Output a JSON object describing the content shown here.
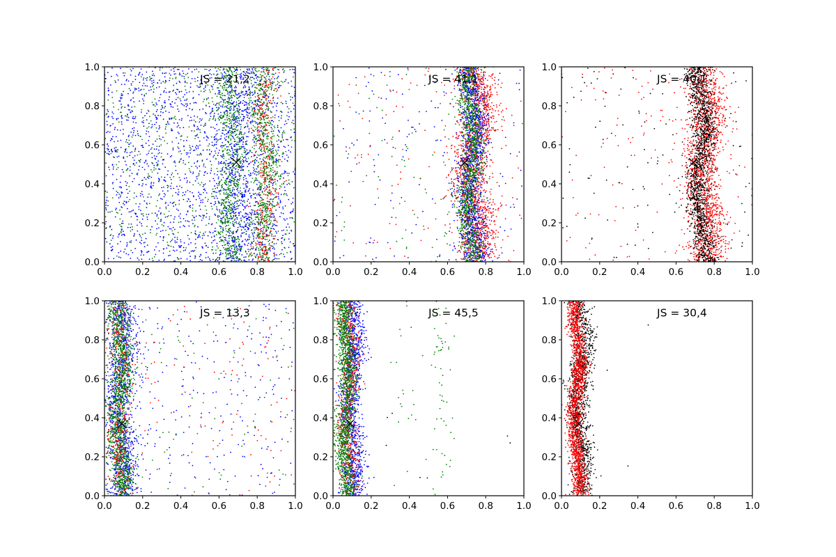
{
  "figure": {
    "layout": "2x3 grid of scatter subplots",
    "background": "#ffffff"
  },
  "chart_data": [
    {
      "type": "scatter",
      "annotation": "JS = 21,2",
      "xlim": [
        0,
        1
      ],
      "ylim": [
        0,
        1
      ],
      "xticks": [
        "0.0",
        "0.2",
        "0.4",
        "0.6",
        "0.8",
        "1.0"
      ],
      "yticks": [
        "0.0",
        "0.2",
        "0.4",
        "0.6",
        "0.8",
        "1.0"
      ],
      "marker": {
        "x": 0.69,
        "y": 0.51,
        "symbol": "x",
        "color": "#000000"
      },
      "point_groups": [
        {
          "color": "#0000ff",
          "pattern": "uniform",
          "count": 1800
        },
        {
          "color": "#008000",
          "pattern": "uniform",
          "count": 600
        },
        {
          "color": "#008000",
          "pattern": "band",
          "x_center": 0.66,
          "width": 0.035,
          "wave": 0.02,
          "count": 700
        },
        {
          "color": "#008000",
          "pattern": "band",
          "x_center": 0.84,
          "width": 0.035,
          "wave": 0.02,
          "count": 700
        },
        {
          "color": "#ff0000",
          "pattern": "band",
          "x_center": 0.84,
          "width": 0.03,
          "wave": 0.02,
          "count": 350
        },
        {
          "color": "#0000ff",
          "pattern": "band",
          "x_center": 0.7,
          "width": 0.05,
          "wave": 0.02,
          "count": 500
        }
      ]
    },
    {
      "type": "scatter",
      "annotation": "JS = 41,1",
      "xlim": [
        0,
        1
      ],
      "ylim": [
        0,
        1
      ],
      "xticks": [
        "0.0",
        "0.2",
        "0.4",
        "0.6",
        "0.8",
        "1.0"
      ],
      "yticks": [
        "0.0",
        "0.2",
        "0.4",
        "0.6",
        "0.8",
        "1.0"
      ],
      "marker": {
        "x": 0.69,
        "y": 0.51,
        "symbol": "x",
        "color": "#000000"
      },
      "point_groups": [
        {
          "color": "#ff0000",
          "pattern": "band",
          "x_center": 0.74,
          "width": 0.05,
          "wave": 0.02,
          "count": 1500
        },
        {
          "color": "#0000ff",
          "pattern": "band",
          "x_center": 0.73,
          "width": 0.035,
          "wave": 0.02,
          "count": 1200
        },
        {
          "color": "#008000",
          "pattern": "band",
          "x_center": 0.72,
          "width": 0.03,
          "wave": 0.02,
          "count": 1100
        },
        {
          "color": "#ff0000",
          "pattern": "uniform",
          "count": 150
        },
        {
          "color": "#0000ff",
          "pattern": "uniform",
          "count": 150
        },
        {
          "color": "#008000",
          "pattern": "uniform",
          "count": 100
        }
      ]
    },
    {
      "type": "scatter",
      "annotation": "JS = 40,1",
      "xlim": [
        0,
        1
      ],
      "ylim": [
        0,
        1
      ],
      "xticks": [
        "0.0",
        "0.2",
        "0.4",
        "0.6",
        "0.8",
        "1.0"
      ],
      "yticks": [
        "0.0",
        "0.2",
        "0.4",
        "0.6",
        "0.8",
        "1.0"
      ],
      "marker": {
        "x": 0.69,
        "y": 0.51,
        "symbol": "x",
        "color": "#000000"
      },
      "point_groups": [
        {
          "color": "#ff0000",
          "pattern": "band",
          "x_center": 0.75,
          "width": 0.05,
          "wave": 0.025,
          "count": 1600
        },
        {
          "color": "#000000",
          "pattern": "band",
          "x_center": 0.73,
          "width": 0.03,
          "wave": 0.025,
          "count": 1300
        },
        {
          "color": "#ff0000",
          "pattern": "uniform",
          "count": 150
        },
        {
          "color": "#000000",
          "pattern": "uniform",
          "count": 120
        }
      ]
    },
    {
      "type": "scatter",
      "annotation": "JS = 13,3",
      "xlim": [
        0,
        1
      ],
      "ylim": [
        0,
        1
      ],
      "xticks": [
        "0.0",
        "0.2",
        "0.4",
        "0.6",
        "0.8",
        "1.0"
      ],
      "yticks": [
        "0.0",
        "0.2",
        "0.4",
        "0.6",
        "0.8",
        "1.0"
      ],
      "marker": {
        "x": 0.09,
        "y": 0.37,
        "symbol": "x",
        "color": "#000000"
      },
      "point_groups": [
        {
          "color": "#0000ff",
          "pattern": "band",
          "x_center": 0.09,
          "width": 0.04,
          "wave": 0.015,
          "count": 1100
        },
        {
          "color": "#008000",
          "pattern": "band",
          "x_center": 0.08,
          "width": 0.03,
          "wave": 0.015,
          "count": 1400
        },
        {
          "color": "#ff0000",
          "pattern": "band",
          "x_center": 0.08,
          "width": 0.03,
          "wave": 0.015,
          "count": 300
        },
        {
          "color": "#0000ff",
          "pattern": "uniform",
          "count": 300
        },
        {
          "color": "#008000",
          "pattern": "uniform",
          "count": 100
        },
        {
          "color": "#ff0000",
          "pattern": "uniform",
          "count": 120
        }
      ]
    },
    {
      "type": "scatter",
      "annotation": "JS = 45,5",
      "xlim": [
        0,
        1
      ],
      "ylim": [
        0,
        1
      ],
      "xticks": [
        "0.0",
        "0.2",
        "0.4",
        "0.6",
        "0.8",
        "1.0"
      ],
      "yticks": [
        "0.0",
        "0.2",
        "0.4",
        "0.6",
        "0.8",
        "1.0"
      ],
      "marker": {
        "x": 0.09,
        "y": 0.37,
        "symbol": "x",
        "color": "#000000"
      },
      "point_groups": [
        {
          "color": "#0000ff",
          "pattern": "band",
          "x_center": 0.1,
          "width": 0.03,
          "wave": 0.015,
          "count": 1100
        },
        {
          "color": "#ff0000",
          "pattern": "band",
          "x_center": 0.08,
          "width": 0.025,
          "wave": 0.015,
          "count": 700
        },
        {
          "color": "#008000",
          "pattern": "band",
          "x_center": 0.07,
          "width": 0.025,
          "wave": 0.015,
          "count": 1300
        },
        {
          "color": "#008000",
          "pattern": "band",
          "x_center": 0.57,
          "width": 0.03,
          "wave": 0.01,
          "count": 60
        },
        {
          "color": "#008000",
          "pattern": "band",
          "x_center": 0.37,
          "width": 0.04,
          "wave": 0.01,
          "count": 20
        },
        {
          "color": "#000000",
          "pattern": "uniform",
          "count": 10
        }
      ]
    },
    {
      "type": "scatter",
      "annotation": "JS = 30,4",
      "xlim": [
        0,
        1
      ],
      "ylim": [
        0,
        1
      ],
      "xticks": [
        "0.0",
        "0.2",
        "0.4",
        "0.6",
        "0.8",
        "1.0"
      ],
      "yticks": [
        "0.0",
        "0.2",
        "0.4",
        "0.6",
        "0.8",
        "1.0"
      ],
      "marker": {
        "x": 0.09,
        "y": 0.37,
        "symbol": "x",
        "color": "#000000"
      },
      "point_groups": [
        {
          "color": "#000000",
          "pattern": "band",
          "x_center": 0.1,
          "width": 0.03,
          "wave": 0.015,
          "count": 1200
        },
        {
          "color": "#ff0000",
          "pattern": "band",
          "x_center": 0.08,
          "width": 0.02,
          "wave": 0.015,
          "count": 1600
        },
        {
          "color": "#000000",
          "pattern": "uniform",
          "count": 4
        }
      ]
    }
  ]
}
